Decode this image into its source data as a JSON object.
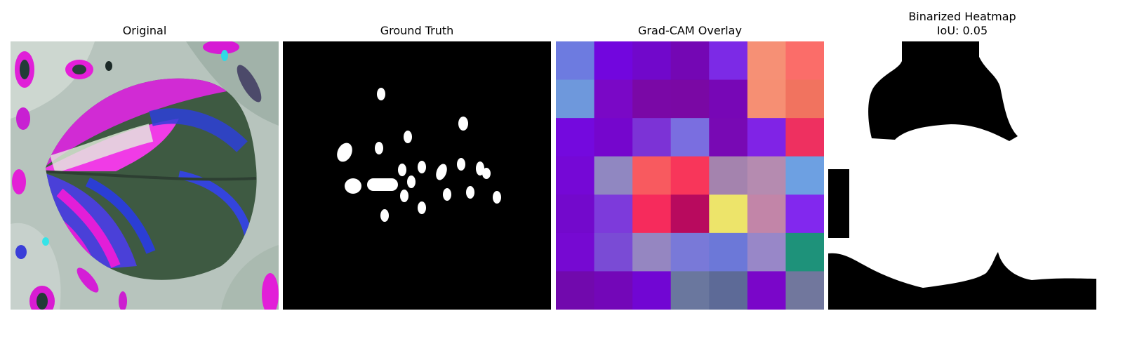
{
  "panels": [
    {
      "title": "Original"
    },
    {
      "title": "Ground Truth"
    },
    {
      "title": "Grad-CAM Overlay"
    },
    {
      "title_line1": "Binarized Heatmap",
      "title_line2": "IoU: 0.05"
    }
  ],
  "gradcam_grid": [
    [
      "#6d7be0",
      "#7206de",
      "#7108cb",
      "#7407b4",
      "#7c2ae6",
      "#f69075",
      "#fb6d69"
    ],
    [
      "#6e98dc",
      "#7a08c6",
      "#7a08a6",
      "#7a08a4",
      "#7707b6",
      "#f68f73",
      "#f1735f"
    ],
    [
      "#7409de",
      "#7506cd",
      "#7c33d6",
      "#7a6ee0",
      "#7809b4",
      "#8023e6",
      "#ee3060"
    ],
    [
      "#7508d6",
      "#9087c1",
      "#f85a5f",
      "#f8365a",
      "#a483ae",
      "#b58bb0",
      "#6da0e2"
    ],
    [
      "#7309cc",
      "#7d3adb",
      "#f62b5c",
      "#b80a5e",
      "#ede46a",
      "#c285a8",
      "#8228ee"
    ],
    [
      "#7609d2",
      "#7a4bd5",
      "#9586c1",
      "#7979d8",
      "#6c78d8",
      "#9887c8",
      "#1e927a"
    ],
    [
      "#7109ad",
      "#7307b8",
      "#7106d3",
      "#6a779e",
      "#5d6a97",
      "#7a06c9",
      "#71779d"
    ]
  ]
}
